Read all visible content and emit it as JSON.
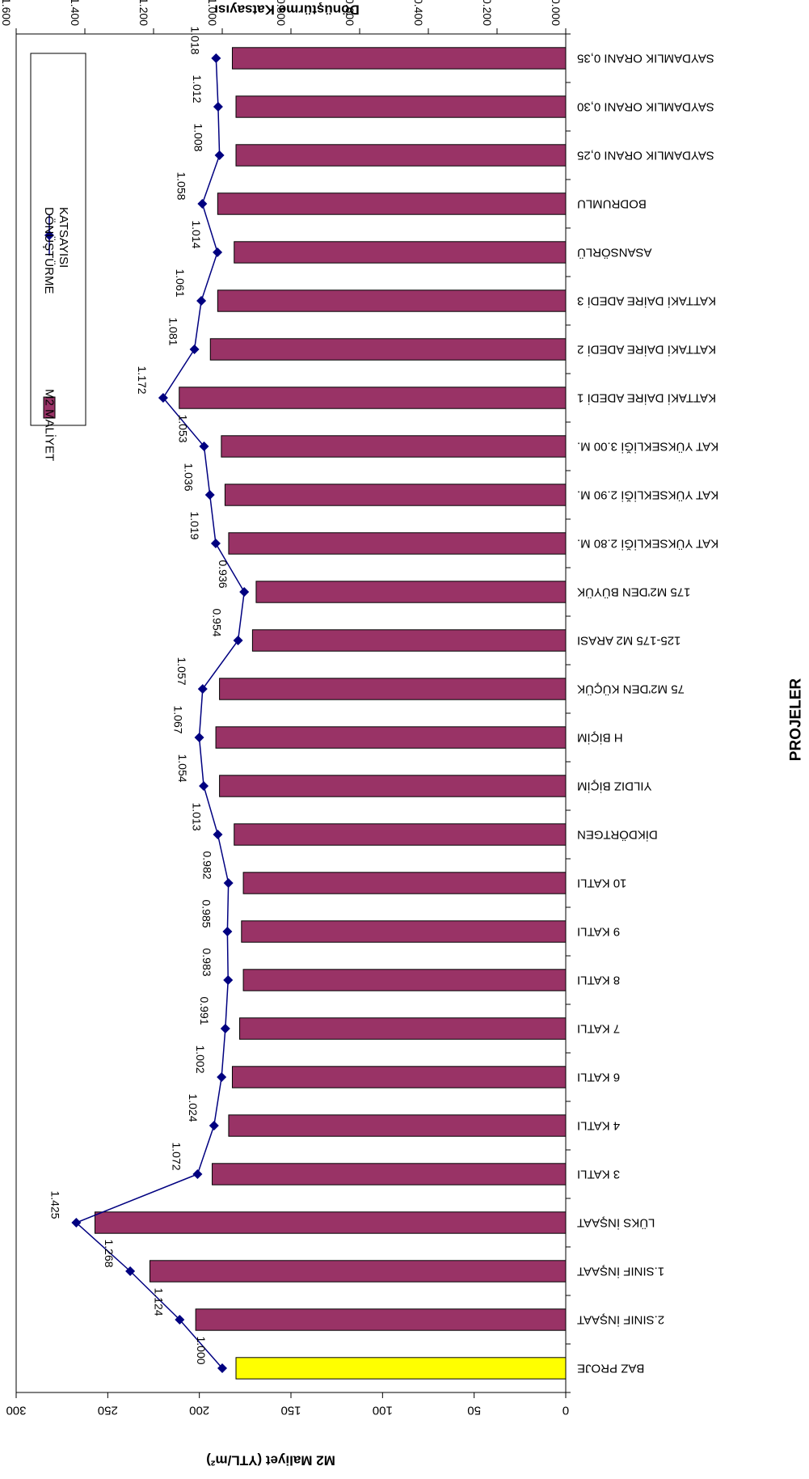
{
  "chart_data": {
    "type": "bar",
    "title": "",
    "xlabel": "PROJELER",
    "ylabel": "M2 Maliyet (YTL/m²)",
    "y2label": "Dönüştürme Katsayısı",
    "ylim": [
      0,
      300
    ],
    "y2lim": [
      0,
      1.6
    ],
    "y_ticks": [
      "0",
      "50",
      "100",
      "150",
      "200",
      "250",
      "300"
    ],
    "y2_ticks": [
      "0.000",
      "0.200",
      "0.400",
      "0.600",
      "0.800",
      "1.000",
      "1.200",
      "1.400",
      "1.600"
    ],
    "grid": false,
    "legend_position": "top-right",
    "bar_color": "#993366",
    "base_bar_color": "#FFFF00",
    "line_color": "#000080",
    "categories": [
      "BAZ PROJE",
      "2.SINIF İNŞAAT",
      "1.SINIF İNŞAAT",
      "LÜKS İNŞAAT",
      "3 KATLI",
      "4 KATLI",
      "6 KATLI",
      "7 KATLI",
      "8 KATLI",
      "9 KATLI",
      "10 KATLI",
      "DİKDÖRTGEN",
      "YILDIZ BİÇİM",
      "H BİÇİM",
      "75 M2'DEN KÜÇÜK",
      "125-175 M2 ARASI",
      "175 M2'DEN BÜYÜK",
      "KAT YÜKSEKLİĞİ 2.80 M.",
      "KAT YÜKSEKLİĞİ 2.90 M.",
      "KAT YÜKSEKLİĞİ 3.00 M.",
      "KATTAKİ DAİRE ADEDİ 1",
      "KATTAKİ DAİRE ADEDİ 2",
      "KATTAKİ DAİRE ADEDİ 3",
      "ASANSÖRLÜ",
      "BODRUMLU",
      "SAYDAMLIK ORANI 0,25",
      "SAYDAMLIK ORANI 0,30",
      "SAYDAMLIK ORANI 0,35"
    ],
    "series": [
      {
        "name": "M2 MALİYET",
        "type": "bar",
        "axis": "left",
        "values": [
          180,
          202,
          227,
          257,
          193,
          184,
          182,
          178,
          176,
          177,
          176,
          181,
          189,
          191,
          189,
          171,
          169,
          184,
          186,
          188,
          211,
          194,
          190,
          181,
          190,
          180,
          180,
          182
        ]
      },
      {
        "name": "DÖNÜŞTÜRME KATSAYISI",
        "type": "line",
        "axis": "right",
        "values": [
          1.0,
          1.124,
          1.268,
          1.425,
          1.072,
          1.024,
          1.002,
          0.991,
          0.983,
          0.985,
          0.982,
          1.013,
          1.054,
          1.067,
          1.057,
          0.954,
          0.936,
          1.019,
          1.036,
          1.053,
          1.172,
          1.081,
          1.061,
          1.014,
          1.058,
          1.008,
          1.012,
          1.018
        ]
      }
    ],
    "data_labels": [
      "1.000",
      "1.124",
      "1.268",
      "1.425",
      "1.072",
      "1.024",
      "1.002",
      "0.991",
      "0.983",
      "0.985",
      "0.982",
      "1.013",
      "1.054",
      "1.067",
      "1.057",
      "0.954",
      "0.936",
      "1.019",
      "1.036",
      "1.053",
      "1.172",
      "1.081",
      "1.061",
      "1.014",
      "1.058",
      "1.008",
      "1.012",
      "1.018"
    ]
  }
}
